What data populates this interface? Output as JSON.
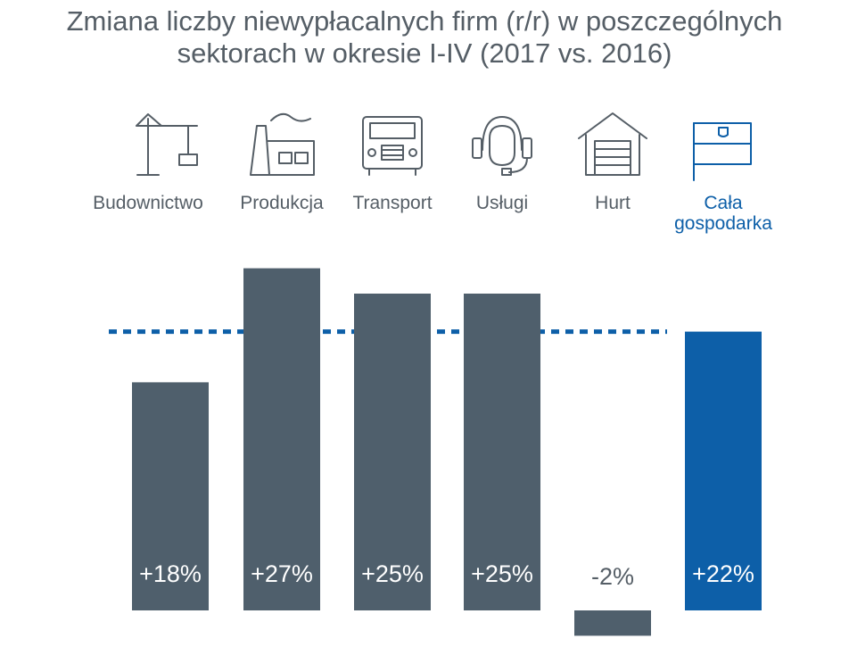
{
  "chart_data": {
    "type": "bar",
    "title_lines": [
      "Zmiana liczby niewypłacalnych firm (r/r) w poszczególnych",
      "sektorach w okresie I-IV (2017 vs. 2016)"
    ],
    "categories": [
      [
        "Budownictwo"
      ],
      [
        "Produkcja"
      ],
      [
        "Transport"
      ],
      [
        "Usługi"
      ],
      [
        "Hurt"
      ],
      [
        "Cała",
        "gospodarka"
      ]
    ],
    "icons": [
      "crane-icon",
      "factory-icon",
      "truck-icon",
      "headset-icon",
      "warehouse-icon",
      "flag-icon"
    ],
    "values": [
      18,
      27,
      25,
      25,
      -2,
      22
    ],
    "value_labels": [
      "+18%",
      "+27%",
      "+25%",
      "+25%",
      "-2%",
      "+22%"
    ],
    "reference_line": 22,
    "colors": {
      "bar": "#4f5f6c",
      "highlight": "#0d5fa8",
      "title": "#555e66",
      "category_text": "#555e66",
      "icon": "#555e66",
      "negative_label": "#555e66",
      "positive_label": "#ffffff"
    },
    "highlight_index": 5
  }
}
